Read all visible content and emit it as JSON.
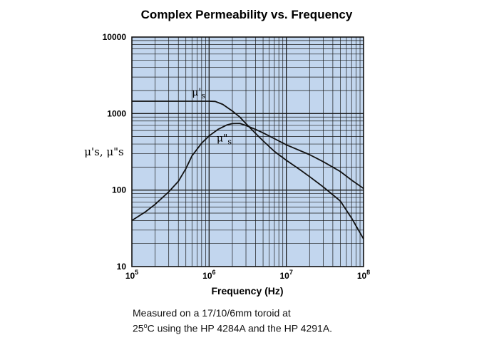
{
  "chart_data": {
    "type": "line",
    "title": "Complex Permeability vs. Frequency",
    "xlabel": "Frequency (Hz)",
    "ylabel": "μ's, μ\"s",
    "x_scale": "log",
    "y_scale": "log",
    "xlim": [
      100000,
      100000000
    ],
    "ylim": [
      10,
      10000
    ],
    "x_ticks": [
      {
        "value": 100000,
        "base": "10",
        "exp": "5"
      },
      {
        "value": 1000000,
        "base": "10",
        "exp": "6"
      },
      {
        "value": 10000000,
        "base": "10",
        "exp": "7"
      },
      {
        "value": 100000000,
        "base": "10",
        "exp": "8"
      }
    ],
    "y_ticks": [
      {
        "value": 10,
        "label": "10"
      },
      {
        "value": 100,
        "label": "100"
      },
      {
        "value": 1000,
        "label": "1000"
      },
      {
        "value": 10000,
        "label": "10000"
      }
    ],
    "grid": true,
    "background_color": "#c2d6ee",
    "line_color": "#111111",
    "series": [
      {
        "name": "μ's",
        "label_main": "μ'",
        "label_sub": "s",
        "label_at": [
          600000,
          1720
        ],
        "points": [
          [
            100000,
            1450
          ],
          [
            300000,
            1450
          ],
          [
            600000,
            1450
          ],
          [
            1000000,
            1450
          ],
          [
            1200000,
            1440
          ],
          [
            1500000,
            1320
          ],
          [
            2000000,
            1080
          ],
          [
            2500000,
            900
          ],
          [
            3000000,
            740
          ],
          [
            4000000,
            550
          ],
          [
            5000000,
            440
          ],
          [
            7000000,
            320
          ],
          [
            10000000,
            245
          ],
          [
            15000000,
            185
          ],
          [
            20000000,
            150
          ],
          [
            30000000,
            110
          ],
          [
            50000000,
            72
          ],
          [
            70000000,
            43
          ],
          [
            100000000,
            23
          ]
        ]
      },
      {
        "name": "μ\"s",
        "label_main": "μ\"",
        "label_sub": "s",
        "label_at": [
          1250000,
          430
        ],
        "points": [
          [
            100000,
            40
          ],
          [
            150000,
            52
          ],
          [
            200000,
            65
          ],
          [
            300000,
            95
          ],
          [
            400000,
            130
          ],
          [
            500000,
            190
          ],
          [
            600000,
            280
          ],
          [
            800000,
            410
          ],
          [
            1000000,
            510
          ],
          [
            1300000,
            620
          ],
          [
            1700000,
            710
          ],
          [
            2000000,
            740
          ],
          [
            2500000,
            745
          ],
          [
            3000000,
            700
          ],
          [
            4000000,
            620
          ],
          [
            5000000,
            560
          ],
          [
            7000000,
            470
          ],
          [
            10000000,
            390
          ],
          [
            20000000,
            290
          ],
          [
            30000000,
            235
          ],
          [
            50000000,
            175
          ],
          [
            70000000,
            135
          ],
          [
            100000000,
            105
          ]
        ]
      }
    ]
  },
  "caption": {
    "line1": "Measured on a 17/10/6mm toroid at",
    "line2_pre": "25",
    "line2_sup": "o",
    "line2_post": "C using the HP 4284A and the HP 4291A."
  }
}
